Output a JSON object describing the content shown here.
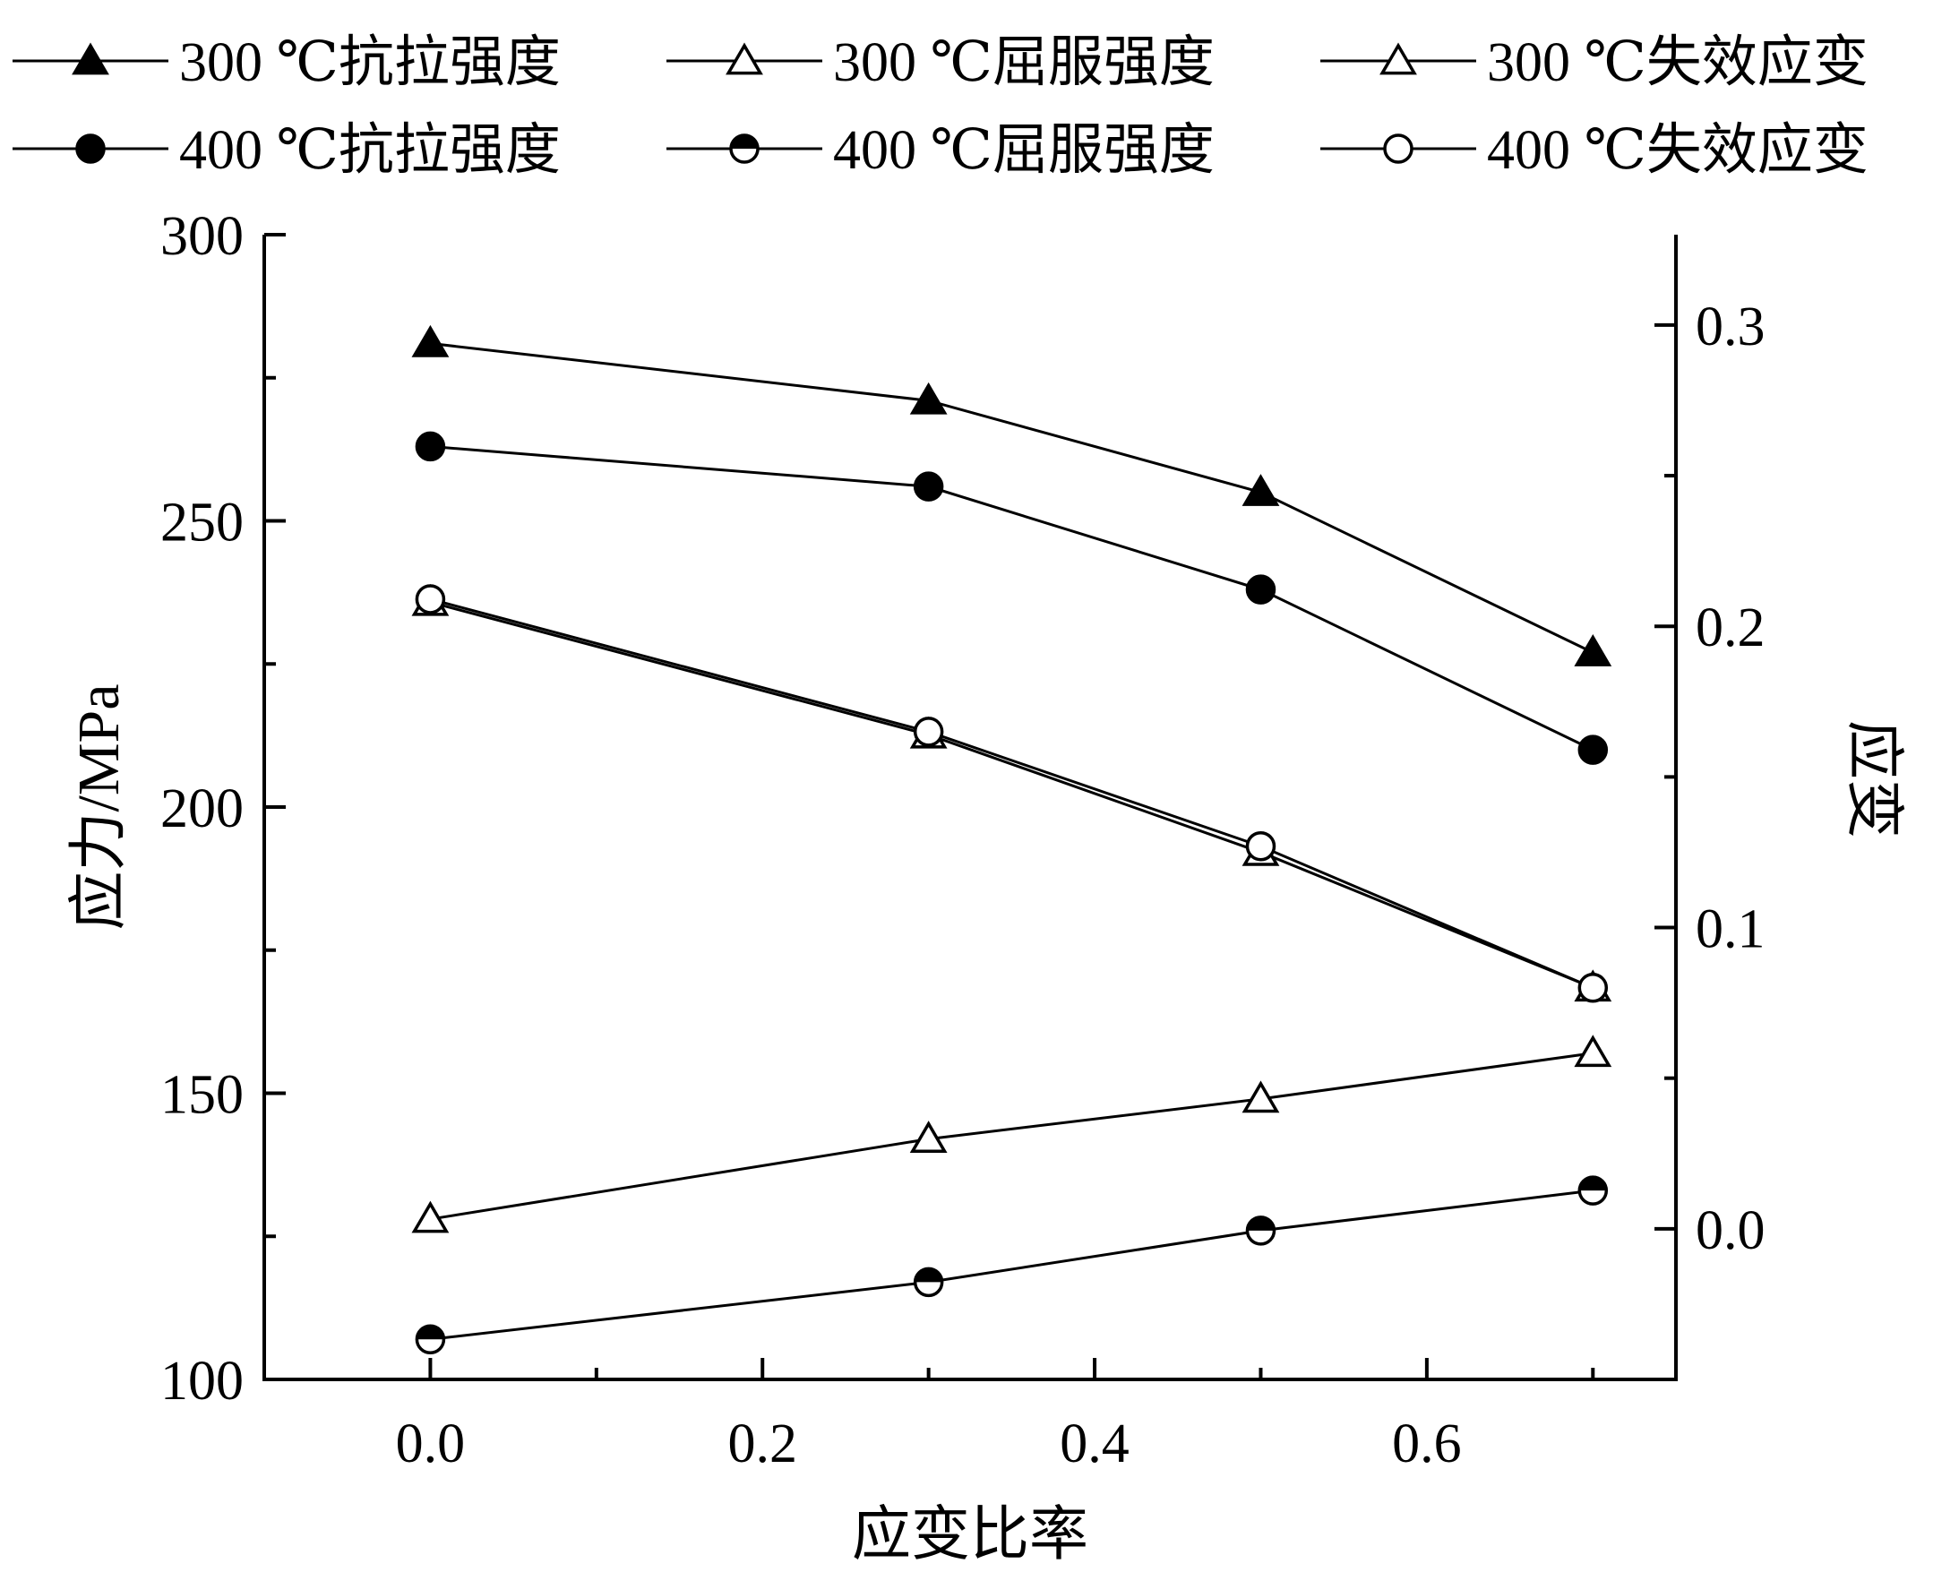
{
  "chart_data": {
    "type": "line",
    "xlabel": "应变比率",
    "ylabel_left": "应力/MPa",
    "ylabel_right": "应变",
    "xlim": [
      -0.1,
      0.75
    ],
    "ylim_left": [
      100,
      300
    ],
    "ylim_right": [
      -0.05,
      0.33
    ],
    "x_ticks": [
      0.0,
      0.2,
      0.4,
      0.6
    ],
    "x_tick_labels": [
      "0.0",
      "0.2",
      "0.4",
      "0.6"
    ],
    "y_left_ticks": [
      100,
      150,
      200,
      250,
      300
    ],
    "y_left_tick_labels": [
      "100",
      "150",
      "200",
      "250",
      "300"
    ],
    "y_right_ticks": [
      0.0,
      0.1,
      0.2,
      0.3
    ],
    "y_right_tick_labels": [
      "0.0",
      "0.1",
      "0.2",
      "0.3"
    ],
    "grid": false,
    "legend_position": "top",
    "x": [
      0.0,
      0.3,
      0.5,
      0.7
    ],
    "series": [
      {
        "name": "300 ℃抗拉强度",
        "axis": "left",
        "marker": "triangle-filled",
        "values": [
          281,
          271,
          255,
          227
        ]
      },
      {
        "name": "300 ℃屈服强度",
        "axis": "left",
        "marker": "triangle-open",
        "values": [
          128,
          142,
          149,
          157
        ]
      },
      {
        "name": "300 ℃失效应变",
        "axis": "right",
        "marker": "triangle-open",
        "values": [
          0.208,
          0.164,
          0.125,
          0.08
        ]
      },
      {
        "name": "400 ℃抗拉强度",
        "axis": "left",
        "marker": "circle-filled",
        "values": [
          263,
          256,
          238,
          210
        ]
      },
      {
        "name": "400 ℃屈服强度",
        "axis": "left",
        "marker": "circle-half",
        "values": [
          107,
          117,
          126,
          133
        ]
      },
      {
        "name": "400 ℃失效应变",
        "axis": "right",
        "marker": "circle-open",
        "values": [
          0.209,
          0.165,
          0.127,
          0.08
        ]
      }
    ]
  }
}
